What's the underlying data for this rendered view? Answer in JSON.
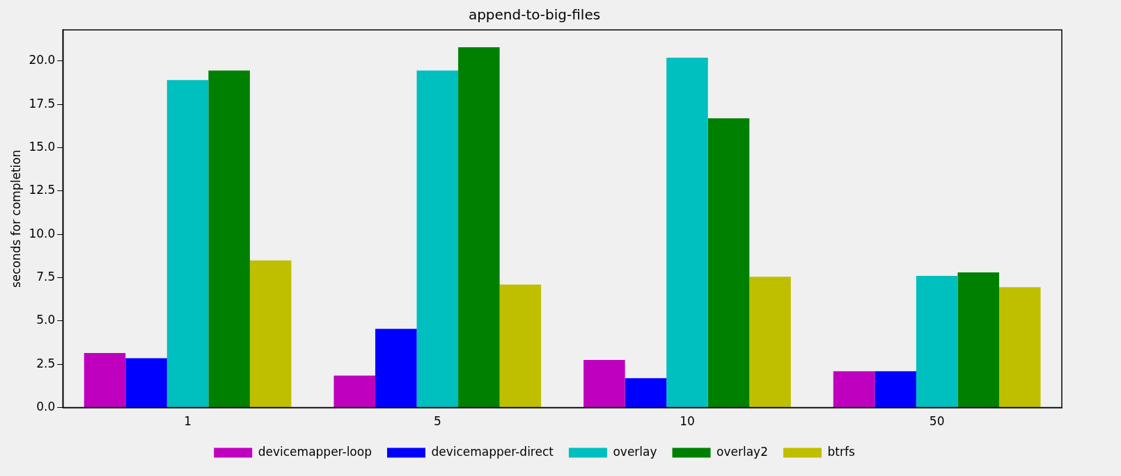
{
  "chart_data": {
    "type": "bar",
    "title": "append-to-big-files",
    "ylabel": "seconds for completion",
    "categories": [
      "1",
      "5",
      "10",
      "50"
    ],
    "series": [
      {
        "name": "devicemapper-loop",
        "color": "#bf00bf",
        "values": [
          3.15,
          1.85,
          2.75,
          2.1
        ]
      },
      {
        "name": "devicemapper-direct",
        "color": "#0000ff",
        "values": [
          2.85,
          4.55,
          1.7,
          2.1
        ]
      },
      {
        "name": "overlay",
        "color": "#00bfbf",
        "values": [
          18.9,
          19.45,
          20.2,
          7.6
        ]
      },
      {
        "name": "overlay2",
        "color": "#008000",
        "values": [
          19.45,
          20.8,
          16.7,
          7.8
        ]
      },
      {
        "name": "btrfs",
        "color": "#bfbf00",
        "values": [
          8.5,
          7.1,
          7.55,
          6.95
        ]
      }
    ],
    "ylim": [
      0,
      21.8
    ],
    "yticks": [
      {
        "value": 0,
        "label": "0.0"
      },
      {
        "value": 2.5,
        "label": "2.5"
      },
      {
        "value": 5,
        "label": "5.0"
      },
      {
        "value": 7.5,
        "label": "7.5"
      },
      {
        "value": 10,
        "label": "10.0"
      },
      {
        "value": 12.5,
        "label": "12.5"
      },
      {
        "value": 15,
        "label": "15.0"
      },
      {
        "value": 17.5,
        "label": "17.5"
      },
      {
        "value": 20,
        "label": "20.0"
      }
    ],
    "grid": false,
    "legend": "bottom"
  }
}
